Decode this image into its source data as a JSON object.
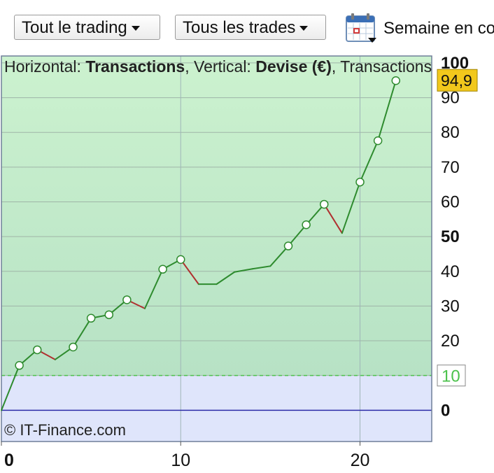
{
  "toolbar": {
    "trading_filter": "Tout le trading",
    "trades_filter": "Tous les trades",
    "period_label": "Semaine en cours"
  },
  "info_bar": {
    "h_label": "Horizontal: ",
    "h_value": "Transactions",
    "sep": ", ",
    "v_label": "Vertical: ",
    "v_value": "Devise (€)",
    "rest": ", Transactions"
  },
  "copyright": "© IT-Finance.com",
  "colors": {
    "rise": "#2e8b2e",
    "fall": "#b03030",
    "zone_above": "#c4eec8",
    "zone_below": "#dfe5fb",
    "zero_line": "#2b2ba8",
    "badge": "#f2c81c"
  },
  "chart_data": {
    "type": "line",
    "x": [
      0,
      1,
      2,
      3,
      4,
      5,
      6,
      7,
      8,
      9,
      10,
      11,
      12,
      13,
      14,
      15,
      16,
      17,
      18,
      19,
      20,
      21,
      22
    ],
    "y": [
      0,
      12.9,
      17.4,
      14.6,
      18.2,
      26.5,
      27.5,
      31.8,
      29.3,
      40.6,
      43.4,
      36.3,
      36.3,
      39.8,
      40.7,
      41.5,
      47.3,
      53.4,
      59.3,
      51.0,
      65.7,
      77.6,
      94.9
    ],
    "markers": [
      1,
      2,
      4,
      5,
      6,
      7,
      9,
      10,
      16,
      17,
      18,
      20,
      21,
      22
    ],
    "xlim": [
      0,
      24
    ],
    "ylim": [
      -9,
      102
    ],
    "x_ticks": [
      0,
      10,
      20
    ],
    "x_tick_labels": [
      "0",
      "10",
      "20"
    ],
    "y_ticks": [
      0,
      10,
      20,
      30,
      40,
      50,
      60,
      70,
      80,
      90,
      100
    ],
    "y_tick_labels": [
      "0",
      "10",
      "20",
      "30",
      "40",
      "50",
      "60",
      "70",
      "80",
      "90",
      "100"
    ],
    "bold_ticks": [
      0,
      50,
      100
    ],
    "threshold": 10,
    "threshold_label": "10",
    "last_value_label": "94,9",
    "grid": true
  }
}
